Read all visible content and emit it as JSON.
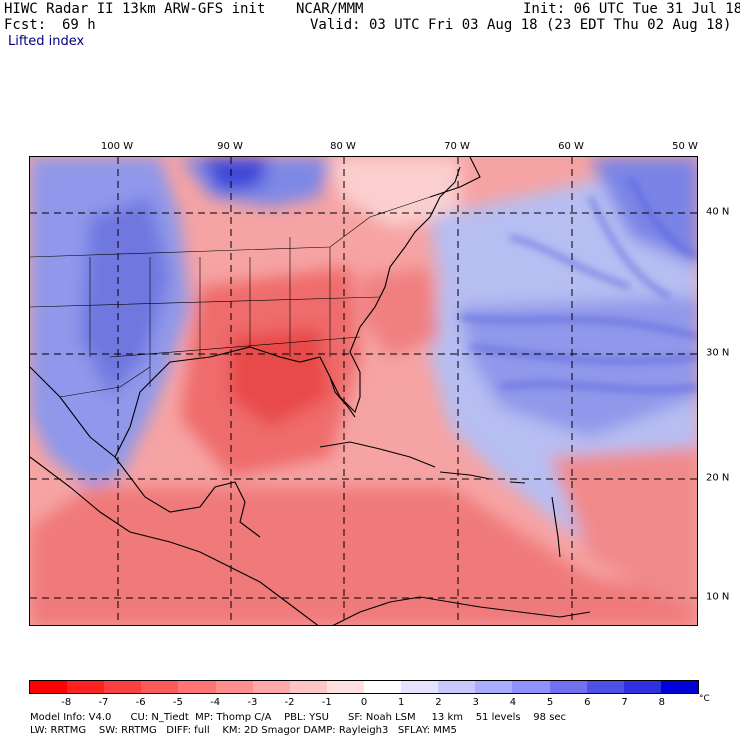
{
  "header": {
    "title_left": "HIWC Radar II 13km ARW-GFS init",
    "org": "NCAR/MMM",
    "init": "Init: 06 UTC Tue 31 Jul 18",
    "fcst_label": "Fcst:",
    "fcst_value": "69 h",
    "valid": "Valid: 03 UTC Fri 03 Aug 18 (23 EDT Thu 02 Aug 18)",
    "field": "Lifted index"
  },
  "map": {
    "lon_labels": [
      "100 W",
      "90 W",
      "80 W",
      "70 W",
      "60 W",
      "50 W"
    ],
    "lat_labels": [
      "40 N",
      "30 N",
      "20 N",
      "10 N"
    ],
    "colors": {
      "warm_strong": "#e8383a",
      "warm_mid": "#f27b7b",
      "warm_light": "#fbcfcf",
      "cool_light": "#d6dcf7",
      "cool_mid": "#8f98ea",
      "cool_strong": "#2f3bd6",
      "coast": "#000000",
      "contour": "#6b1a1a"
    }
  },
  "colorbar": {
    "ticks": [
      "-8",
      "-7",
      "-6",
      "-5",
      "-4",
      "-3",
      "-2",
      "-1",
      "0",
      "1",
      "2",
      "3",
      "4",
      "5",
      "6",
      "7",
      "8"
    ],
    "unit": "°C",
    "colors": [
      "#ff0000",
      "#ff2020",
      "#ff4040",
      "#ff5a5a",
      "#ff7474",
      "#ff8e8e",
      "#ffa8a8",
      "#ffc4c4",
      "#ffe0e0",
      "#ffffff",
      "#e4e4ff",
      "#c8c8ff",
      "#acacff",
      "#9090ff",
      "#7070f0",
      "#5050e8",
      "#3030e0",
      "#0000d8"
    ]
  },
  "footer": {
    "line1": "Model Info: V4.0      CU: N_Tiedt  MP: Thomp C/A    PBL: YSU      SF: Noah LSM     13 km    51 levels    98 sec",
    "line2": "LW: RRTMG    SW: RRTMG   DIFF: full    KM: 2D Smagor DAMP: Rayleigh3   SFLAY: MM5"
  }
}
